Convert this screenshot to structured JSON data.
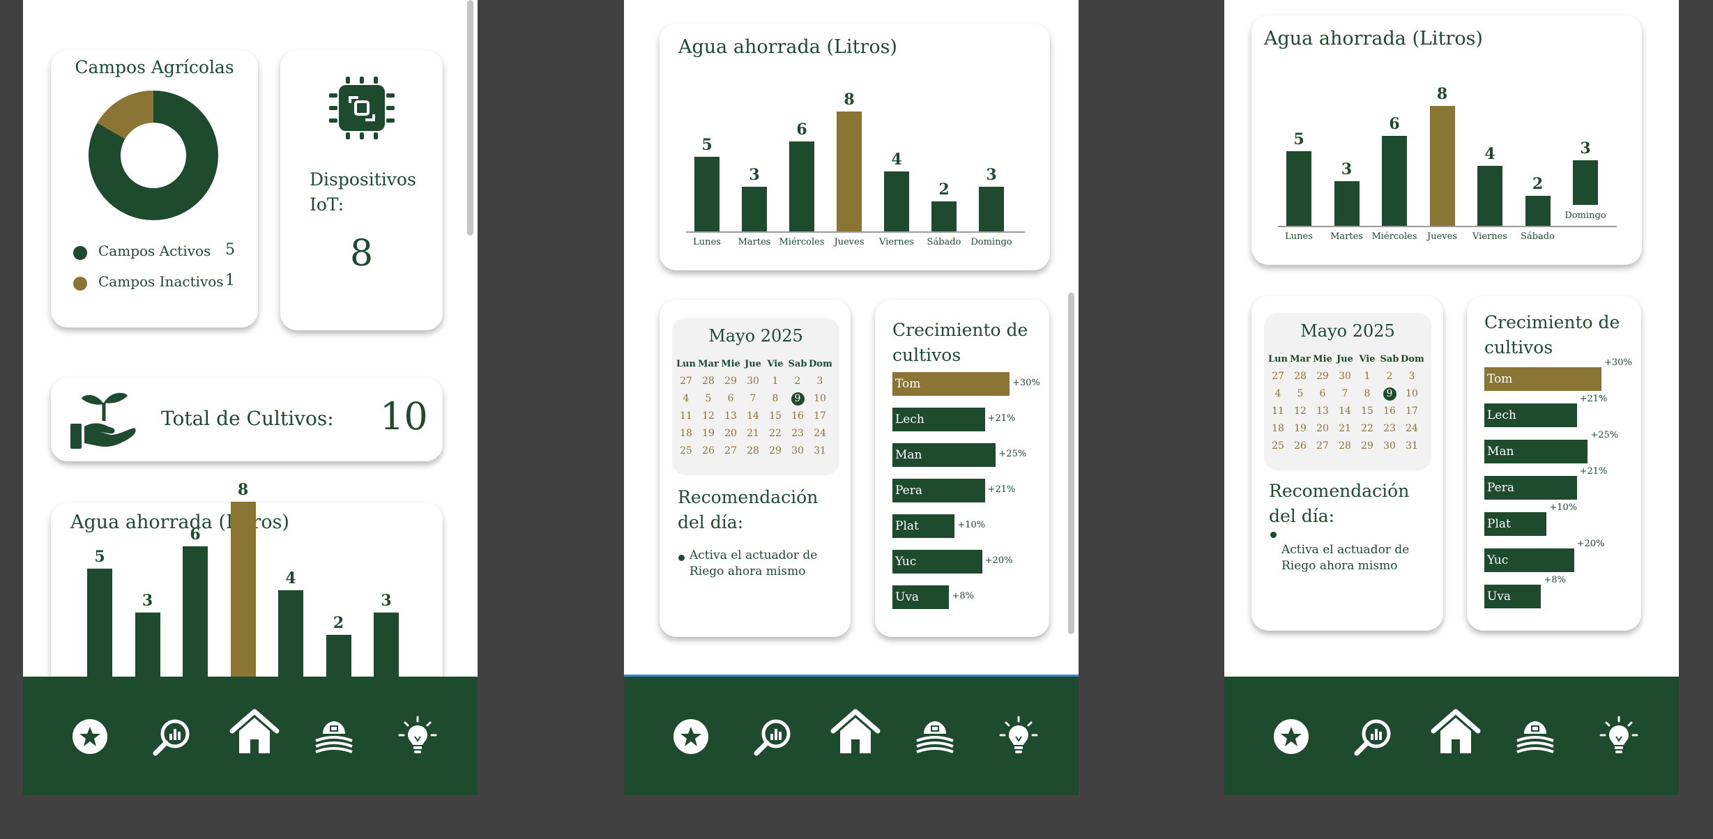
{
  "dashboard": {
    "campos": {
      "title": "Campos Agrícolas",
      "legend": [
        {
          "label": "Campos Activos",
          "value": "5"
        },
        {
          "label": "Campos Inactivos",
          "value": "1"
        }
      ],
      "active": 5,
      "inactive": 1
    },
    "iot": {
      "label": "Dispositivos IoT:",
      "value": "8"
    },
    "cultivos": {
      "label": "Total de Cultivos:",
      "value": "10"
    }
  },
  "water_title": "Agua ahorrada (Litros)",
  "chart_data": {
    "type": "bar",
    "title": "Agua ahorrada (Litros)",
    "categories": [
      "Lunes",
      "Martes",
      "Miércoles",
      "Jueves",
      "Viernes",
      "Sábado",
      "Domingo"
    ],
    "values": [
      5,
      3,
      6,
      8,
      4,
      2,
      3
    ],
    "highlight_index": 3,
    "ylim": [
      0,
      8
    ]
  },
  "calendar": {
    "title": "Mayo 2025",
    "headers": [
      "Lun",
      "Mar",
      "Mie",
      "Jue",
      "Vie",
      "Sab",
      "Dom"
    ],
    "days": [
      "27",
      "28",
      "29",
      "30",
      "1",
      "2",
      "3",
      "4",
      "5",
      "6",
      "7",
      "8",
      "9",
      "10",
      "11",
      "12",
      "13",
      "14",
      "15",
      "16",
      "17",
      "18",
      "19",
      "20",
      "21",
      "22",
      "23",
      "24",
      "25",
      "26",
      "27",
      "28",
      "29",
      "30",
      "31"
    ],
    "selected_index": 12
  },
  "recommendation": {
    "title_line1": "Recomendación",
    "title_line2": "del día:",
    "text_line1": "Activa el actuador de",
    "text_line2": "Riego ahora mismo"
  },
  "growth": {
    "title_line1": "Crecimiento de",
    "title_line2": "cultivos",
    "items": [
      {
        "label": "Tom",
        "pct": "+30%",
        "value": 30
      },
      {
        "label": "Lech",
        "pct": "+21%",
        "value": 21
      },
      {
        "label": "Man",
        "pct": "+25%",
        "value": 25
      },
      {
        "label": "Pera",
        "pct": "+21%",
        "value": 21
      },
      {
        "label": "Plat",
        "pct": "+10%",
        "value": 10
      },
      {
        "label": "Yuc",
        "pct": "+20%",
        "value": 20
      },
      {
        "label": "Uva",
        "pct": "+8%",
        "value": 8
      }
    ]
  },
  "nav": {
    "icons": [
      "star-icon",
      "search-chart-icon",
      "home-icon",
      "farm-icon",
      "lightbulb-icon"
    ]
  },
  "colors": {
    "green": "#1e4a2e",
    "gold": "#8b7535",
    "background": "#414141"
  }
}
